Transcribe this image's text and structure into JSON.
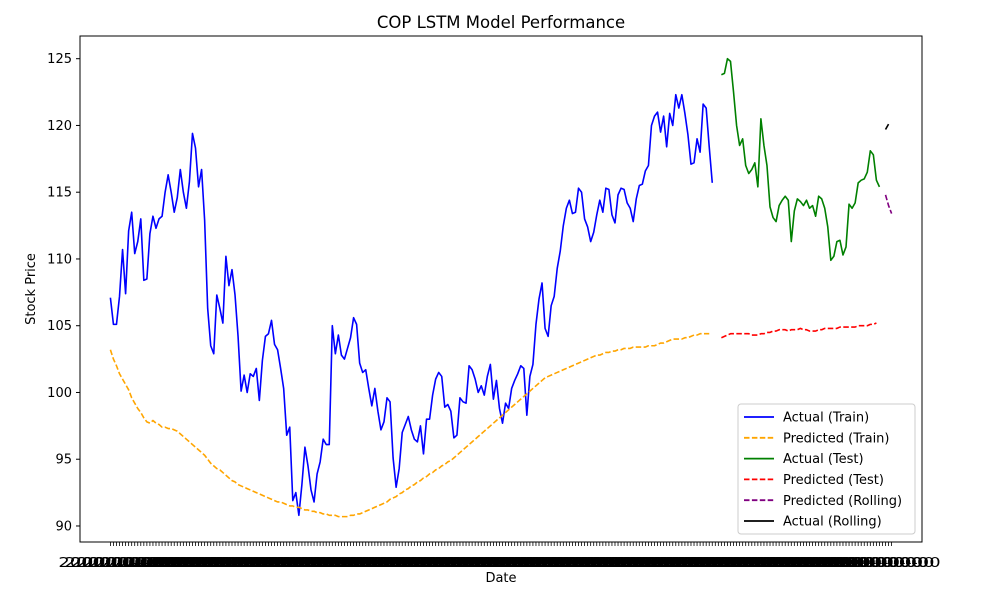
{
  "chart_data": {
    "type": "line",
    "title": "COP LSTM Model Performance",
    "xlabel": "Date",
    "ylabel": "Stock Price",
    "ylim": [
      88.8,
      126.7
    ],
    "yticks": [
      90,
      95,
      100,
      105,
      110,
      115,
      120,
      125
    ],
    "xlim": [
      -10,
      267
    ],
    "x_tick_labels_overlap": true,
    "grid": false,
    "legend_position": "lower-right",
    "series": [
      {
        "name": "Actual (Train)",
        "color": "#0000ff",
        "dash": "solid",
        "x_start": 0,
        "values": [
          107.1,
          105.1,
          105.1,
          107.2,
          110.7,
          107.4,
          112.1,
          113.5,
          110.4,
          111.3,
          113.0,
          108.4,
          108.5,
          111.9,
          113.2,
          112.3,
          113.0,
          113.2,
          115.0,
          116.3,
          115.0,
          113.5,
          114.6,
          116.7,
          115.0,
          113.8,
          115.8,
          119.4,
          118.3,
          115.4,
          116.7,
          112.9,
          106.3,
          103.5,
          102.9,
          107.3,
          106.3,
          105.2,
          110.2,
          108.0,
          109.2,
          107.3,
          104.2,
          100.1,
          101.3,
          100.0,
          101.4,
          101.2,
          101.8,
          99.4,
          102.4,
          104.2,
          104.4,
          105.4,
          103.6,
          103.2,
          101.8,
          100.3,
          96.8,
          97.4,
          91.9,
          92.5,
          90.8,
          93.1,
          95.9,
          94.5,
          92.7,
          91.8,
          93.9,
          94.8,
          96.5,
          96.1,
          96.1,
          105.0,
          102.9,
          104.3,
          102.8,
          102.5,
          103.3,
          104.1,
          105.6,
          105.1,
          102.2,
          101.5,
          101.7,
          100.3,
          99.0,
          100.3,
          98.6,
          97.2,
          97.8,
          99.6,
          99.3,
          95.1,
          92.9,
          94.3,
          97.0,
          97.6,
          98.2,
          97.2,
          96.5,
          96.3,
          97.5,
          95.4,
          98.0,
          98.0,
          99.8,
          101.0,
          101.5,
          101.2,
          98.9,
          99.1,
          98.6,
          96.6,
          96.8,
          99.6,
          99.3,
          99.2,
          102.0,
          101.7,
          101.0,
          100.0,
          100.5,
          99.8,
          101.2,
          102.1,
          99.5,
          100.9,
          98.8,
          97.7,
          99.2,
          98.8,
          100.3,
          100.9,
          101.4,
          102.0,
          101.8,
          98.3,
          101.2,
          102.1,
          105.1,
          107.0,
          108.2,
          104.8,
          104.2,
          106.5,
          107.2,
          109.3,
          110.6,
          112.5,
          113.8,
          114.4,
          113.4,
          113.5,
          115.3,
          115.0,
          113.0,
          112.4,
          111.3,
          112.0,
          113.3,
          114.4,
          113.5,
          115.3,
          115.2,
          113.3,
          112.7,
          114.8,
          115.3,
          115.2,
          114.2,
          113.8,
          112.8,
          114.5,
          115.5,
          115.6,
          116.6,
          117.0,
          120.0,
          120.7,
          121.0,
          119.5,
          120.7,
          118.4,
          120.9,
          120.0,
          122.3,
          121.3,
          122.3,
          120.9,
          119.3,
          117.1,
          117.2,
          119.0,
          118.0,
          121.6,
          121.3,
          118.4,
          115.7
        ]
      },
      {
        "name": "Predicted (Train)",
        "color": "#ffa500",
        "dash": "dashed",
        "x_start": 0,
        "values": [
          103.2,
          102.5,
          102.0,
          101.4,
          101.0,
          100.6,
          100.2,
          99.6,
          99.2,
          98.8,
          98.5,
          98.1,
          97.8,
          97.7,
          97.9,
          97.7,
          97.6,
          97.4,
          97.4,
          97.3,
          97.3,
          97.2,
          97.1,
          96.9,
          96.7,
          96.5,
          96.3,
          96.1,
          95.9,
          95.7,
          95.5,
          95.3,
          95.0,
          94.7,
          94.5,
          94.3,
          94.2,
          94.0,
          93.8,
          93.6,
          93.4,
          93.3,
          93.1,
          93.0,
          92.9,
          92.8,
          92.7,
          92.6,
          92.5,
          92.4,
          92.3,
          92.2,
          92.1,
          92.0,
          91.9,
          91.8,
          91.8,
          91.7,
          91.6,
          91.5,
          91.5,
          91.4,
          91.4,
          91.3,
          91.2,
          91.2,
          91.1,
          91.1,
          91.0,
          91.0,
          90.9,
          90.9,
          90.8,
          90.8,
          90.8,
          90.7,
          90.7,
          90.7,
          90.7,
          90.8,
          90.8,
          90.9,
          90.9,
          91.0,
          91.1,
          91.2,
          91.3,
          91.4,
          91.5,
          91.6,
          91.7,
          91.8,
          92.0,
          92.1,
          92.2,
          92.4,
          92.5,
          92.7,
          92.8,
          93.0,
          93.1,
          93.3,
          93.4,
          93.6,
          93.7,
          93.9,
          94.0,
          94.2,
          94.3,
          94.5,
          94.6,
          94.8,
          94.9,
          95.1,
          95.3,
          95.5,
          95.7,
          95.9,
          96.1,
          96.3,
          96.5,
          96.7,
          96.9,
          97.1,
          97.3,
          97.5,
          97.7,
          97.9,
          98.1,
          98.3,
          98.5,
          98.7,
          98.9,
          99.1,
          99.3,
          99.5,
          99.7,
          99.9,
          100.1,
          100.3,
          100.5,
          100.7,
          100.9,
          101.1,
          101.2,
          101.3,
          101.4,
          101.5,
          101.6,
          101.7,
          101.8,
          101.9,
          102.0,
          102.1,
          102.2,
          102.3,
          102.4,
          102.5,
          102.6,
          102.7,
          102.8,
          102.8,
          102.9,
          103.0,
          103.0,
          103.1,
          103.1,
          103.2,
          103.2,
          103.3,
          103.3,
          103.3,
          103.4,
          103.4,
          103.4,
          103.4,
          103.4,
          103.5,
          103.5,
          103.5,
          103.6,
          103.7,
          103.7,
          103.8,
          103.9,
          104.0,
          104.0,
          104.0,
          104.0,
          104.1,
          104.1,
          104.2,
          104.3,
          104.3,
          104.4,
          104.4,
          104.4,
          104.4
        ]
      },
      {
        "name": "Actual (Test)",
        "color": "#008000",
        "dash": "solid",
        "x_start": 201,
        "values": [
          123.8,
          123.9,
          125.0,
          124.8,
          122.5,
          120.0,
          118.5,
          119.0,
          117.0,
          116.4,
          116.7,
          117.2,
          115.4,
          120.5,
          118.5,
          117.0,
          113.9,
          113.1,
          112.8,
          114.0,
          114.4,
          114.7,
          114.4,
          111.3,
          113.6,
          114.5,
          114.3,
          114.0,
          114.4,
          113.8,
          114.0,
          113.2,
          114.7,
          114.5,
          113.8,
          112.4,
          109.9,
          110.2,
          111.3,
          111.4,
          110.3,
          110.9,
          114.1,
          113.8,
          114.2,
          115.7,
          115.9,
          116.0,
          116.5,
          118.1,
          117.8,
          115.9,
          115.4
        ]
      },
      {
        "name": "Predicted (Test)",
        "color": "#ff0000",
        "dash": "dashed",
        "x_start": 201,
        "values": [
          104.1,
          104.2,
          104.3,
          104.4,
          104.4,
          104.4,
          104.4,
          104.4,
          104.4,
          104.4,
          104.3,
          104.3,
          104.3,
          104.4,
          104.4,
          104.5,
          104.5,
          104.6,
          104.6,
          104.7,
          104.7,
          104.7,
          104.6,
          104.7,
          104.7,
          104.7,
          104.8,
          104.7,
          104.7,
          104.6,
          104.6,
          104.6,
          104.7,
          104.7,
          104.8,
          104.8,
          104.8,
          104.8,
          104.8,
          104.9,
          104.9,
          104.9,
          104.9,
          104.9,
          104.9,
          105.0,
          105.0,
          105.0,
          105.0,
          105.1,
          105.1,
          105.2
        ]
      },
      {
        "name": "Predicted (Rolling)",
        "color": "#800080",
        "dash": "dashed",
        "x_start": 255,
        "values": [
          114.8,
          114.0,
          113.4
        ]
      },
      {
        "name": "Actual (Rolling)",
        "color": "#000000",
        "dash": "solid",
        "x_start": 255,
        "values": [
          119.7,
          120.1
        ]
      }
    ]
  }
}
